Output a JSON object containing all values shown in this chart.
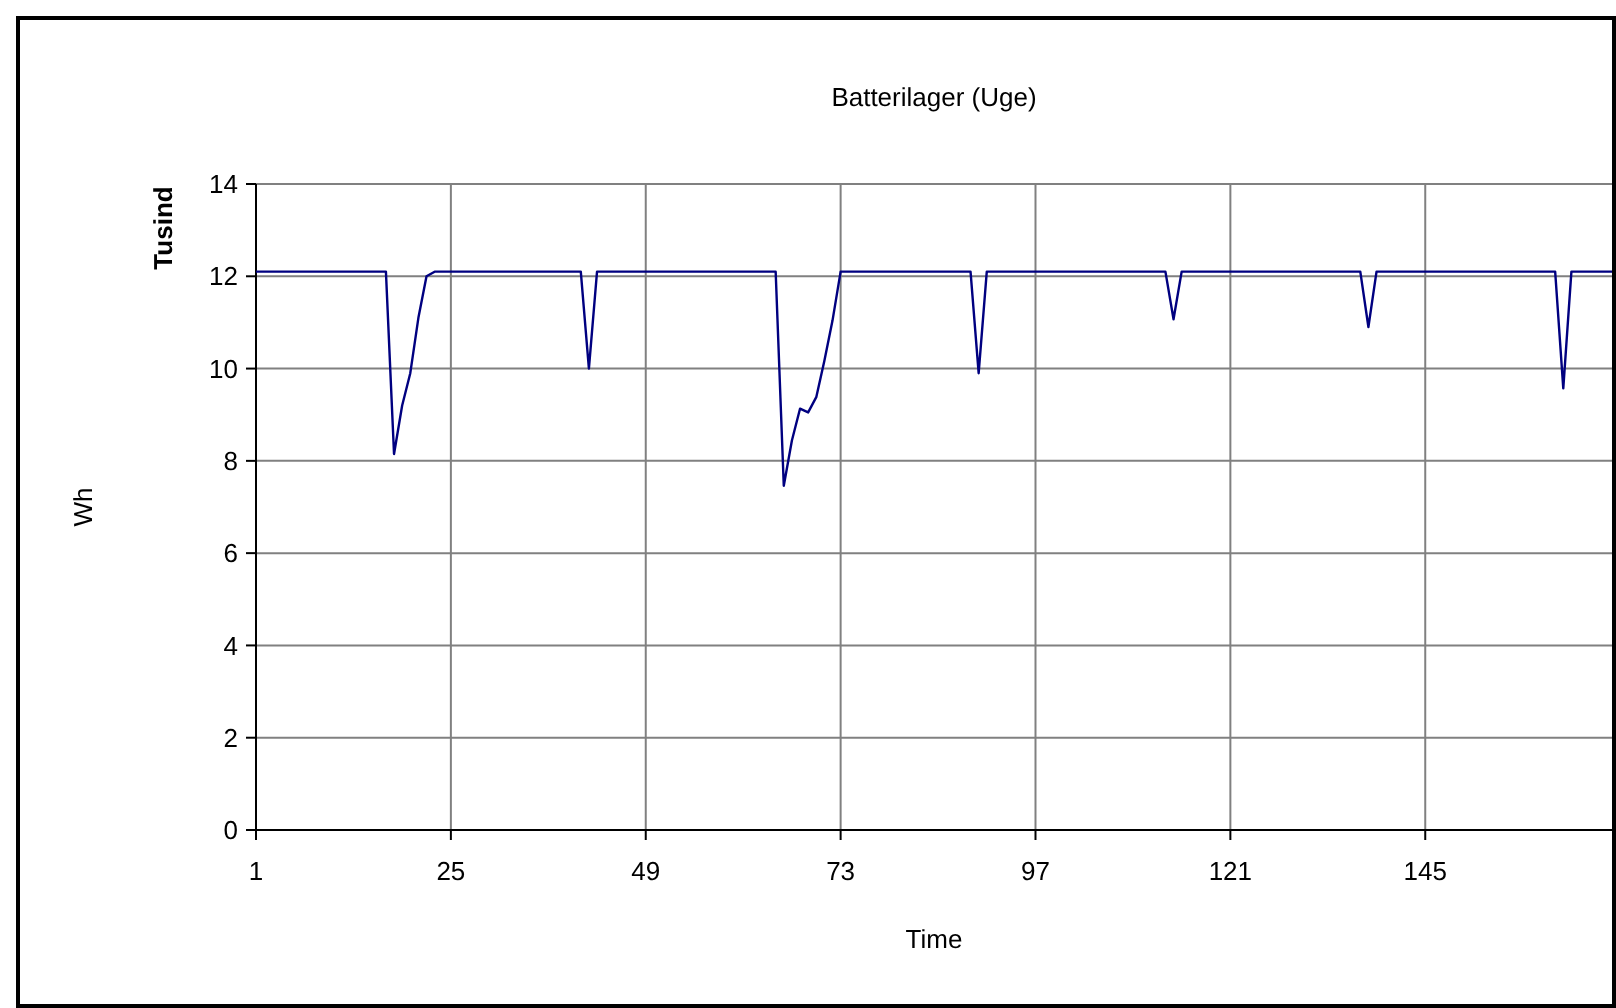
{
  "chart_data": {
    "type": "line",
    "title": "Batterilager (Uge)",
    "xlabel": "Time",
    "ylabel": "Wh",
    "annotations": [
      "Tusind"
    ],
    "x": [
      1,
      17,
      18,
      19,
      20,
      21,
      22,
      23,
      41,
      42,
      43,
      65,
      66,
      67,
      68,
      69,
      70,
      71,
      72,
      73,
      89,
      90,
      91,
      113,
      114,
      115,
      137,
      138,
      139,
      161,
      162,
      163,
      168
    ],
    "series": [
      {
        "color": "#000080",
        "values": [
          12.1,
          12.1,
          8.15,
          9.2,
          9.9,
          11.1,
          12.0,
          12.1,
          12.1,
          10.0,
          12.1,
          12.1,
          7.46,
          8.44,
          9.13,
          9.05,
          9.38,
          10.17,
          11.04,
          12.1,
          12.1,
          9.9,
          12.1,
          12.1,
          11.07,
          12.1,
          12.1,
          10.9,
          12.1,
          12.1,
          9.57,
          12.1,
          12.1
        ]
      }
    ],
    "xlim": [
      1,
      168
    ],
    "xticks": [
      1,
      25,
      49,
      73,
      97,
      121,
      145
    ],
    "ylim": [
      0,
      14
    ],
    "yticks": [
      0,
      2,
      4,
      6,
      8,
      10,
      12,
      14
    ],
    "grid": true,
    "marker": "none",
    "line_style": "solid"
  }
}
